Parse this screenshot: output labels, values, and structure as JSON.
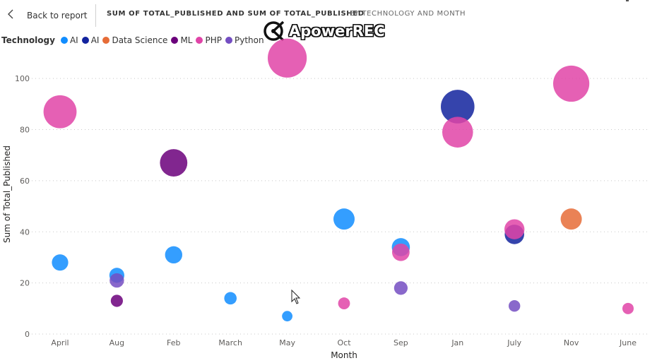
{
  "header": {
    "back_label": "Back to report",
    "title": "SUM OF TOTAL_PUBLISHED AND SUM OF TOTAL_PUBLISHED",
    "subtitle": "BY TECHNOLOGY AND MONTH"
  },
  "watermark": {
    "text": "ApowerREC"
  },
  "chart_data": {
    "type": "scatter",
    "xlabel": "Month",
    "ylabel": "Sum of Total_Published",
    "categories": [
      "April",
      "Aug",
      "Feb",
      "March",
      "May",
      "Oct",
      "Sep",
      "Jan",
      "July",
      "Nov",
      "June"
    ],
    "ylim": [
      0,
      110
    ],
    "yticks": [
      0,
      20,
      40,
      60,
      80,
      100
    ],
    "grid": true,
    "legend": {
      "title": "Technology",
      "position": "top-left"
    },
    "series": [
      {
        "name": "AI",
        "color": "#118DFF",
        "points": [
          {
            "x": "April",
            "y": 28
          },
          {
            "x": "Aug",
            "y": 23
          },
          {
            "x": "Feb",
            "y": 31
          },
          {
            "x": "March",
            "y": 14
          },
          {
            "x": "May",
            "y": 7
          },
          {
            "x": "Oct",
            "y": 45
          },
          {
            "x": "Sep",
            "y": 34
          }
        ]
      },
      {
        "name": "AI",
        "color": "#12239E",
        "points": [
          {
            "x": "Jan",
            "y": 89
          },
          {
            "x": "July",
            "y": 39
          }
        ]
      },
      {
        "name": "Data Science",
        "color": "#E66C37",
        "points": [
          {
            "x": "Nov",
            "y": 45
          }
        ]
      },
      {
        "name": "ML",
        "color": "#6B007B",
        "points": [
          {
            "x": "Aug",
            "y": 13
          },
          {
            "x": "Feb",
            "y": 67
          }
        ]
      },
      {
        "name": "PHP",
        "color": "#E044A7",
        "points": [
          {
            "x": "April",
            "y": 87
          },
          {
            "x": "May",
            "y": 108
          },
          {
            "x": "Oct",
            "y": 12
          },
          {
            "x": "Sep",
            "y": 32
          },
          {
            "x": "Jan",
            "y": 79
          },
          {
            "x": "July",
            "y": 41
          },
          {
            "x": "Nov",
            "y": 98
          },
          {
            "x": "June",
            "y": 10
          }
        ]
      },
      {
        "name": "Python",
        "color": "#744EC2",
        "points": [
          {
            "x": "Aug",
            "y": 21
          },
          {
            "x": "Sep",
            "y": 18
          },
          {
            "x": "July",
            "y": 11
          }
        ]
      }
    ]
  }
}
